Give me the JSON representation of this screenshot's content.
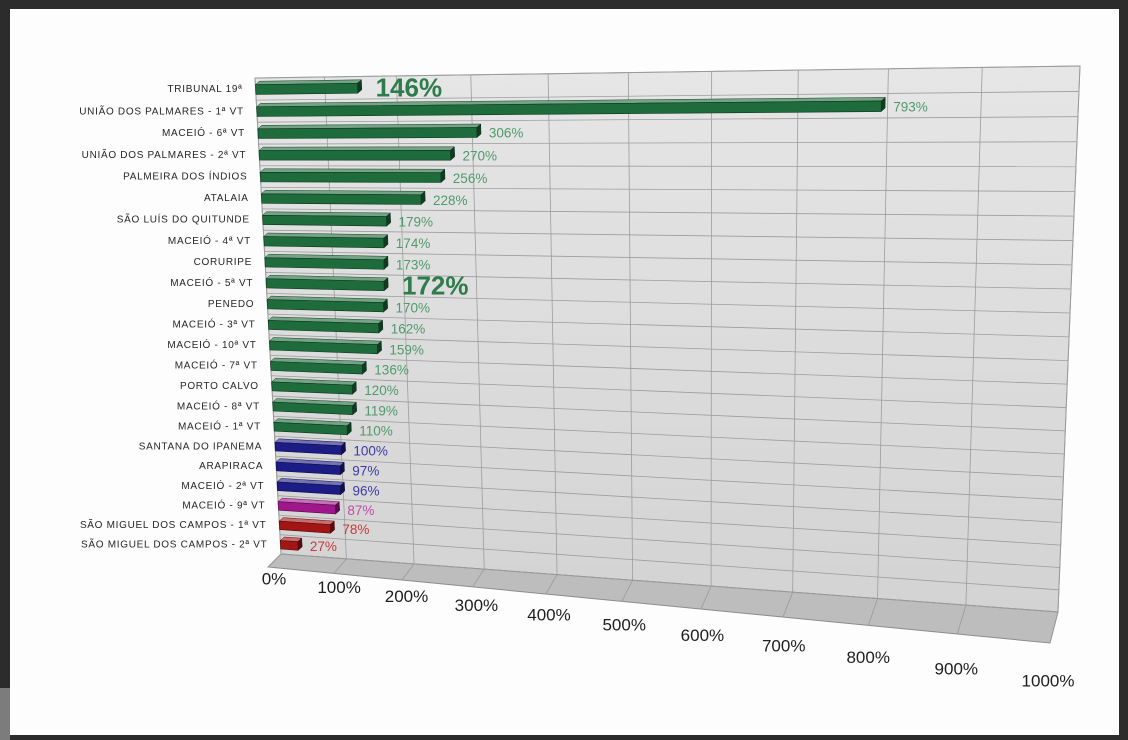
{
  "chart_data": {
    "type": "bar",
    "orientation": "horizontal",
    "three_d": true,
    "grid": true,
    "xlim": [
      0,
      1000
    ],
    "x_ticks": [
      0,
      100,
      200,
      300,
      400,
      500,
      600,
      700,
      800,
      900,
      1000
    ],
    "x_tick_labels": [
      "0%",
      "100%",
      "200%",
      "300%",
      "400%",
      "500%",
      "600%",
      "700%",
      "800%",
      "900%",
      "1000%"
    ],
    "categories": [
      "TRIBUNAL 19ª",
      "UNIÃO DOS PALMARES - 1ª VT",
      "MACEIÓ - 6ª VT",
      "UNIÃO DOS PALMARES - 2ª VT",
      "PALMEIRA DOS ÍNDIOS",
      "ATALAIA",
      "SÃO LUÍS DO QUITUNDE",
      "MACEIÓ - 4ª VT",
      "CORURIPE",
      "MACEIÓ - 5ª VT",
      "PENEDO",
      "MACEIÓ - 3ª VT",
      "MACEIÓ - 10ª VT",
      "MACEIÓ - 7ª VT",
      "PORTO CALVO",
      "MACEIÓ - 8ª VT",
      "MACEIÓ - 1ª VT",
      "SANTANA DO IPANEMA",
      "ARAPIRACA",
      "MACEIÓ - 2ª VT",
      "MACEIÓ - 9ª VT",
      "SÃO MIGUEL DOS CAMPOS - 1ª VT",
      "SÃO MIGUEL DOS CAMPOS - 2ª VT"
    ],
    "values": [
      146,
      793,
      306,
      270,
      256,
      228,
      179,
      174,
      173,
      172,
      170,
      162,
      159,
      136,
      120,
      119,
      110,
      100,
      97,
      96,
      87,
      78,
      27
    ],
    "data_labels": [
      "146%",
      "793%",
      "306%",
      "270%",
      "256%",
      "228%",
      "179%",
      "174%",
      "173%",
      "172%",
      "170%",
      "162%",
      "159%",
      "136%",
      "120%",
      "119%",
      "110%",
      "100%",
      "97%",
      "96%",
      "87%",
      "78%",
      "27%"
    ],
    "emphasized": [
      true,
      false,
      false,
      false,
      false,
      false,
      false,
      false,
      false,
      true,
      false,
      false,
      false,
      false,
      false,
      false,
      false,
      false,
      false,
      false,
      false,
      false,
      false
    ],
    "bar_colors": [
      "#1e6b3c",
      "#1e6b3c",
      "#1e6b3c",
      "#1e6b3c",
      "#1e6b3c",
      "#1e6b3c",
      "#1e6b3c",
      "#1e6b3c",
      "#1e6b3c",
      "#1e6b3c",
      "#1e6b3c",
      "#1e6b3c",
      "#1e6b3c",
      "#1e6b3c",
      "#1e6b3c",
      "#1e6b3c",
      "#1e6b3c",
      "#1c1c86",
      "#1c1c86",
      "#1c1c86",
      "#a0178c",
      "#a31414",
      "#a31414"
    ],
    "label_colors": [
      "#2e7b4b",
      "#4f9a6b",
      "#4f9a6b",
      "#4f9a6b",
      "#4f9a6b",
      "#4f9a6b",
      "#4f9a6b",
      "#4f9a6b",
      "#4f9a6b",
      "#2e7b4b",
      "#4f9a6b",
      "#4f9a6b",
      "#4f9a6b",
      "#4f9a6b",
      "#4f9a6b",
      "#4f9a6b",
      "#4f9a6b",
      "#3b3ba6",
      "#3b3ba6",
      "#3b3ba6",
      "#c24aa6",
      "#c93838",
      "#c93838"
    ]
  }
}
